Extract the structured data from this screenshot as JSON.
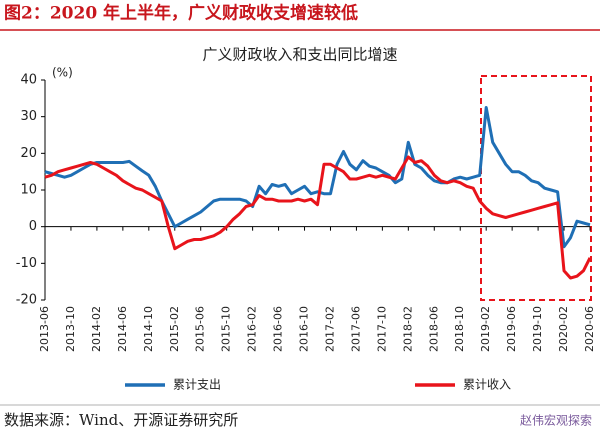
{
  "page_title": "图2：2020 年上半年，广义财政收支增速较低",
  "source": "数据来源：Wind、开源证券研究所",
  "watermark": "赵伟宏观探索",
  "chart_data": {
    "type": "line",
    "title": "广义财政收入和支出同比增速",
    "y_unit_label": "(%)",
    "categories": [
      "2013-06",
      null,
      null,
      null,
      "2013-10",
      null,
      null,
      null,
      "2014-02",
      null,
      null,
      null,
      "2014-06",
      null,
      null,
      null,
      "2014-10",
      null,
      null,
      null,
      "2015-02",
      null,
      null,
      null,
      "2015-06",
      null,
      null,
      null,
      "2015-10",
      null,
      null,
      null,
      "2016-02",
      null,
      null,
      null,
      "2016-06",
      null,
      null,
      null,
      "2016-10",
      null,
      null,
      null,
      "2017-02",
      null,
      null,
      null,
      "2017-06",
      null,
      null,
      null,
      "2017-10",
      null,
      null,
      null,
      "2018-02",
      null,
      null,
      null,
      "2018-06",
      null,
      null,
      null,
      "2018-10",
      null,
      null,
      null,
      "2019-02",
      null,
      null,
      null,
      "2019-06",
      null,
      null,
      null,
      "2019-10",
      null,
      null,
      null,
      "2020-02",
      null,
      null,
      null,
      "2020-06"
    ],
    "series": [
      {
        "name": "累计支出",
        "color": "#1f6fb5",
        "values": [
          15,
          14.5,
          14,
          13.5,
          14,
          15,
          16,
          17,
          17.5,
          17.5,
          17.5,
          17.5,
          17.5,
          17.8,
          16.5,
          15.2,
          14,
          11,
          7,
          3.5,
          0,
          1,
          2,
          3,
          4,
          5.5,
          7,
          7.5,
          7.5,
          7.5,
          7.5,
          7,
          5.5,
          11,
          9,
          11.5,
          11,
          11.5,
          9,
          10,
          11,
          9,
          9.5,
          9,
          9,
          17,
          20.5,
          17,
          15.5,
          18,
          16.5,
          16,
          15,
          14,
          12,
          13,
          23,
          17,
          16,
          14,
          12.5,
          12,
          12,
          13,
          13.5,
          13,
          13.5,
          14,
          32.5,
          23,
          20,
          17,
          15,
          15,
          14,
          12.5,
          12,
          10.5,
          10,
          9.5,
          -5.5,
          -3,
          1.5,
          1,
          0.5
        ]
      },
      {
        "name": "累计收入",
        "color": "#e8141b",
        "values": [
          13.5,
          14,
          15,
          15.5,
          16,
          16.5,
          17,
          17.5,
          17,
          16,
          15,
          14,
          12.5,
          11.5,
          10.5,
          10,
          9,
          8,
          7,
          0,
          -6,
          -5,
          -4,
          -3.5,
          -3.5,
          -3,
          -2.5,
          -1.5,
          0,
          2,
          3.5,
          5.5,
          6,
          8.5,
          7.5,
          7.5,
          7,
          7,
          7,
          7.5,
          7,
          7.5,
          6,
          17,
          17,
          16,
          15,
          13,
          13,
          13.5,
          14,
          13.5,
          14,
          13.5,
          13,
          16,
          19,
          17.5,
          18,
          16.5,
          14,
          12.5,
          12,
          12.5,
          12,
          11,
          10.5,
          7,
          5,
          3.5,
          3,
          2.5,
          3,
          3.5,
          4,
          4.5,
          5,
          5.5,
          6,
          6.5,
          -12,
          -14,
          -13.5,
          -12,
          -8.5
        ]
      }
    ],
    "ylim": [
      -20,
      40
    ],
    "yticks": [
      -20,
      -10,
      0,
      10,
      20,
      30,
      40
    ],
    "grid": false
  }
}
